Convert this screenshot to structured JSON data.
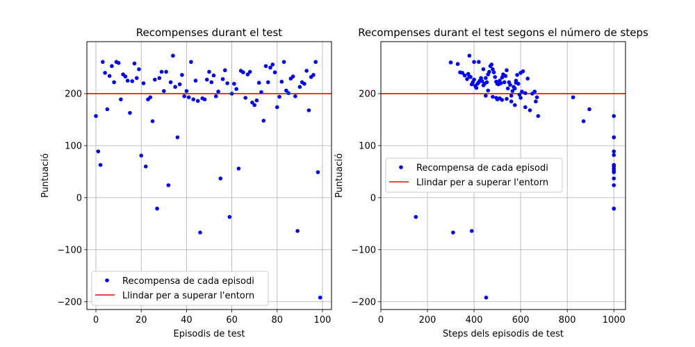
{
  "figure": {
    "background": "#ffffff"
  },
  "chart_data": [
    {
      "type": "scatter",
      "title": "Recompenses durant el test",
      "xlabel": "Episodis de test",
      "ylabel": "Puntuació",
      "xlim": [
        -4,
        104
      ],
      "ylim": [
        -215,
        300
      ],
      "xticks": [
        0,
        20,
        40,
        60,
        80,
        100
      ],
      "yticks": [
        -200,
        -100,
        0,
        100,
        200
      ],
      "grid": true,
      "legend_position": "lower-left",
      "series": [
        {
          "name": "Recompensa de cada episodi",
          "color": "#0000ff",
          "marker": "point",
          "x": [
            0,
            1,
            2,
            3,
            4,
            5,
            6,
            7,
            8,
            9,
            10,
            11,
            12,
            13,
            14,
            15,
            16,
            17,
            18,
            19,
            20,
            21,
            22,
            23,
            24,
            25,
            26,
            27,
            28,
            29,
            30,
            31,
            32,
            33,
            34,
            35,
            36,
            37,
            38,
            39,
            40,
            41,
            42,
            43,
            44,
            45,
            46,
            47,
            48,
            49,
            50,
            51,
            52,
            53,
            54,
            55,
            56,
            57,
            58,
            59,
            60,
            61,
            62,
            63,
            64,
            65,
            66,
            67,
            68,
            69,
            70,
            71,
            72,
            73,
            74,
            75,
            76,
            77,
            78,
            79,
            80,
            81,
            82,
            83,
            84,
            85,
            86,
            87,
            88,
            89,
            90,
            91,
            92,
            93,
            94,
            95,
            96,
            97,
            98,
            99
          ],
          "y": [
            157,
            89,
            63,
            261,
            240,
            170,
            234,
            253,
            222,
            261,
            259,
            189,
            237,
            233,
            225,
            163,
            224,
            258,
            230,
            247,
            81,
            220,
            60,
            189,
            193,
            147,
            227,
            -21,
            230,
            242,
            205,
            242,
            24,
            222,
            273,
            213,
            116,
            218,
            236,
            195,
            205,
            193,
            261,
            189,
            225,
            186,
            -67,
            191,
            189,
            227,
            242,
            222,
            235,
            195,
            204,
            37,
            228,
            245,
            220,
            -37,
            200,
            219,
            209,
            56,
            244,
            241,
            192,
            237,
            242,
            183,
            178,
            187,
            221,
            203,
            148,
            253,
            222,
            250,
            256,
            241,
            174,
            194,
            223,
            261,
            206,
            201,
            229,
            233,
            195,
            -64,
            213,
            222,
            219,
            244,
            168,
            232,
            236,
            261,
            49,
            -192
          ]
        }
      ],
      "reference_lines": [
        {
          "name": "Llindar per a superar l'entorn",
          "y": 200,
          "color": "#ff0000"
        }
      ]
    },
    {
      "type": "scatter",
      "title": "Recompenses durant el test segons el número de steps",
      "xlabel": "Steps dels episodis de test",
      "ylabel": "Puntuació",
      "xlim": [
        0,
        1050
      ],
      "ylim": [
        -215,
        300
      ],
      "xticks": [
        0,
        200,
        400,
        600,
        800,
        1000
      ],
      "yticks": [
        -200,
        -100,
        0,
        100,
        200
      ],
      "grid": true,
      "legend_position": "center-left",
      "series": [
        {
          "name": "Recompensa de cada episodi",
          "color": "#0000ff",
          "marker": "point",
          "x": [
            1000,
            1000,
            1000,
            1000,
            1000,
            1000,
            1000,
            1000,
            1000,
            1000,
            1000,
            1000,
            1000,
            1000,
            150,
            310,
            390,
            452,
            895,
            825,
            870,
            675,
            640,
            620,
            575,
            560,
            540,
            520,
            510,
            500,
            495,
            480,
            460,
            450,
            580,
            600,
            610,
            620,
            630,
            650,
            660,
            665,
            670,
            300,
            330,
            340,
            350,
            360,
            370,
            375,
            380,
            385,
            390,
            395,
            400,
            405,
            410,
            415,
            420,
            425,
            430,
            435,
            440,
            445,
            450,
            455,
            460,
            465,
            470,
            475,
            480,
            485,
            490,
            495,
            500,
            505,
            510,
            515,
            520,
            525,
            530,
            535,
            540,
            545,
            550,
            555,
            560,
            565,
            570,
            575,
            580,
            585,
            590,
            595,
            600,
            605,
            380,
            400,
            420,
            440
          ],
          "y": [
            157,
            116,
            89,
            82,
            63,
            60,
            56,
            52,
            49,
            37,
            24,
            -21,
            -21,
            116,
            -37,
            -67,
            -64,
            -192,
            170,
            193,
            147,
            157,
            168,
            174,
            178,
            185,
            190,
            188,
            191,
            189,
            192,
            194,
            206,
            196,
            225,
            240,
            243,
            201,
            229,
            200,
            204,
            185,
            193,
            260,
            257,
            241,
            240,
            235,
            228,
            238,
            233,
            232,
            218,
            222,
            227,
            215,
            211,
            219,
            222,
            225,
            230,
            224,
            216,
            219,
            230,
            222,
            237,
            242,
            253,
            256,
            247,
            241,
            232,
            223,
            219,
            218,
            225,
            220,
            231,
            237,
            222,
            234,
            245,
            210,
            222,
            217,
            196,
            205,
            213,
            210,
            221,
            236,
            219,
            198,
            192,
            204,
            273,
            261,
            261,
            247
          ]
        }
      ],
      "reference_lines": [
        {
          "name": "Llindar per a superar l'entorn",
          "y": 200,
          "color": "#ff0000"
        }
      ]
    }
  ]
}
